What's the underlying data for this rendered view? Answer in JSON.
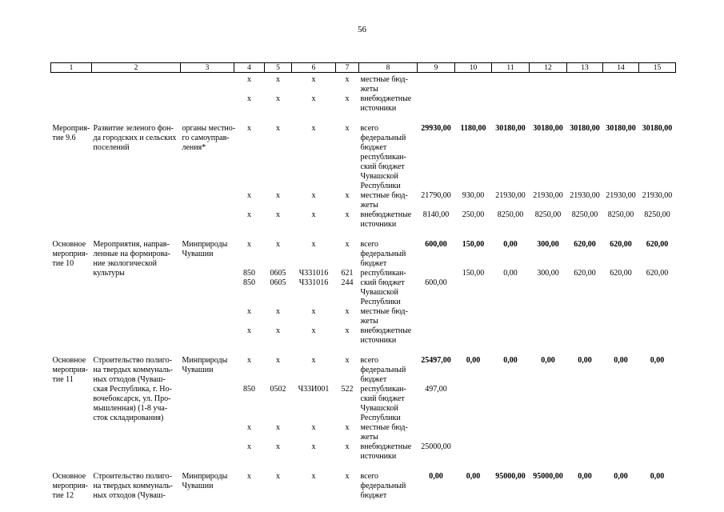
{
  "page": {
    "number": "56"
  },
  "table": {
    "header": [
      "1",
      "2",
      "3",
      "4",
      "5",
      "6",
      "7",
      "8",
      "9",
      "10",
      "11",
      "12",
      "13",
      "14",
      "15"
    ],
    "groups": [
      {
        "name": [],
        "description": [],
        "agency": [],
        "subrows": [
          {
            "codes": [
              [
                "x",
                "x",
                "x",
                "x"
              ]
            ],
            "type": [
              "местные бюд-",
              "жеты"
            ],
            "values": []
          },
          {
            "codes": [
              [
                "x",
                "x",
                "x",
                "x"
              ]
            ],
            "type": [
              "внебюджетные",
              "источники"
            ],
            "values": []
          }
        ]
      },
      {
        "name": [
          "Мероприя-",
          "тие 9.6"
        ],
        "description": [
          "Развитие зеленого фон-",
          "да городских и сельских",
          "поселений"
        ],
        "agency": [
          "органы местно-",
          "го самоуправ-",
          "ления*"
        ],
        "subrows": [
          {
            "codes": [
              [
                "x",
                "x",
                "x",
                "x"
              ]
            ],
            "type": [
              "всего"
            ],
            "bold": true,
            "values": [
              [
                "29930,00",
                "1180,00",
                "30180,00",
                "30180,00",
                "30180,00",
                "30180,00",
                "30180,00"
              ]
            ]
          },
          {
            "codes": [],
            "type": [
              "федеральный",
              "бюджет"
            ],
            "values": []
          },
          {
            "codes": [],
            "type": [
              "республикан-",
              "ский бюджет",
              "Чувашской",
              "Республики"
            ],
            "values": []
          },
          {
            "codes": [
              [
                "x",
                "x",
                "x",
                "x"
              ]
            ],
            "type": [
              "местные бюд-",
              "жеты"
            ],
            "values": [
              [
                "21790,00",
                "930,00",
                "21930,00",
                "21930,00",
                "21930,00",
                "21930,00",
                "21930,00"
              ]
            ]
          },
          {
            "codes": [
              [
                "x",
                "x",
                "x",
                "x"
              ]
            ],
            "type": [
              "внебюджетные",
              "источники"
            ],
            "values": [
              [
                "8140,00",
                "250,00",
                "8250,00",
                "8250,00",
                "8250,00",
                "8250,00",
                "8250,00"
              ]
            ]
          }
        ]
      },
      {
        "name": [
          "Основное",
          "мероприя-",
          "тие 10"
        ],
        "description": [
          "Мероприятия, направ-",
          "ленные на формирова-",
          "ние экологической",
          "культуры"
        ],
        "agency": [
          "Минприроды",
          "Чувашии"
        ],
        "subrows": [
          {
            "codes": [
              [
                "x",
                "x",
                "x",
                "x"
              ]
            ],
            "type": [
              "всего"
            ],
            "bold": true,
            "values": [
              [
                "600,00",
                "150,00",
                "0,00",
                "300,00",
                "620,00",
                "620,00",
                "620,00"
              ]
            ]
          },
          {
            "codes": [],
            "type": [
              "федеральный",
              "бюджет"
            ],
            "values": []
          },
          {
            "codes": [
              [
                "850",
                "0605",
                "Ч331016",
                "621"
              ],
              [
                "850",
                "0605",
                "Ч331016",
                "244"
              ]
            ],
            "type": [
              "республикан-",
              "ский бюджет",
              "Чувашской",
              "Республики"
            ],
            "values": [
              [
                "",
                "150,00",
                "0,00",
                "300,00",
                "620,00",
                "620,00",
                "620,00"
              ],
              [
                "600,00",
                "",
                "",
                "",
                "",
                "",
                ""
              ]
            ]
          },
          {
            "codes": [
              [
                "x",
                "x",
                "x",
                "x"
              ]
            ],
            "type": [
              "местные бюд-",
              "жеты"
            ],
            "values": []
          },
          {
            "codes": [
              [
                "x",
                "x",
                "x",
                "x"
              ]
            ],
            "type": [
              "внебюджетные",
              "источники"
            ],
            "values": []
          }
        ]
      },
      {
        "name": [
          "Основное",
          "мероприя-",
          "тие 11"
        ],
        "description": [
          "Строительство полиго-",
          "на твердых коммуналь-",
          "ных отходов (Чуваш-",
          "ская Республика, г. Но-",
          "вочебоксарск, ул. Про-",
          "мышленная) (1-8 уча-",
          "сток складирования)"
        ],
        "agency": [
          "Минприроды",
          "Чувашии"
        ],
        "subrows": [
          {
            "codes": [
              [
                "x",
                "x",
                "x",
                "x"
              ]
            ],
            "type": [
              "всего"
            ],
            "bold": true,
            "values": [
              [
                "25497,00",
                "0,00",
                "0,00",
                "0,00",
                "0,00",
                "0,00",
                "0,00"
              ]
            ]
          },
          {
            "codes": [],
            "type": [
              "федеральный",
              "бюджет"
            ],
            "values": []
          },
          {
            "codes": [
              [
                "850",
                "0502",
                "Ч33И001",
                "522"
              ]
            ],
            "type": [
              "республикан-",
              "ский бюджет",
              "Чувашской",
              "Республики"
            ],
            "values": [
              [
                "497,00",
                "",
                "",
                "",
                "",
                "",
                ""
              ]
            ]
          },
          {
            "codes": [
              [
                "x",
                "x",
                "x",
                "x"
              ]
            ],
            "type": [
              "местные бюд-",
              "жеты"
            ],
            "values": []
          },
          {
            "codes": [
              [
                "x",
                "x",
                "x",
                "x"
              ]
            ],
            "type": [
              "внебюджетные",
              "источники"
            ],
            "values": [
              [
                "25000,00",
                "",
                "",
                "",
                "",
                "",
                ""
              ]
            ]
          }
        ]
      },
      {
        "name": [
          "Основное",
          "мероприя-",
          "тие 12"
        ],
        "description": [
          "Строительство полиго-",
          "на твердых коммуналь-",
          "ных отходов (Чуваш-"
        ],
        "agency": [
          "Минприроды",
          "Чувашии"
        ],
        "subrows": [
          {
            "codes": [
              [
                "x",
                "x",
                "x",
                "x"
              ]
            ],
            "type": [
              "всего"
            ],
            "bold": true,
            "values": [
              [
                "0,00",
                "0,00",
                "95000,00",
                "95000,00",
                "0,00",
                "0,00",
                "0,00"
              ]
            ]
          },
          {
            "codes": [],
            "type": [
              "федеральный",
              "бюджет"
            ],
            "values": []
          }
        ]
      }
    ]
  }
}
